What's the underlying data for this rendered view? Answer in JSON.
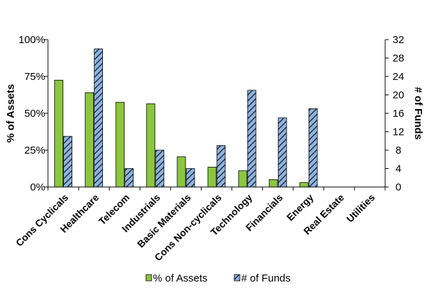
{
  "chart_data": {
    "type": "bar",
    "categories": [
      "Cons Cyclicals",
      "Healthcare",
      "Telecom",
      "Industrials",
      "Basic Materials",
      "Cons Non-cyclicals",
      "Technology",
      "Financials",
      "Energy",
      "Real Estate",
      "Utilities"
    ],
    "series": [
      {
        "name": "% of Assets",
        "axis": "left",
        "color": "#8cc63f",
        "values": [
          72.5,
          64,
          57.5,
          56.5,
          20.5,
          13.5,
          11,
          5,
          3,
          0,
          0
        ]
      },
      {
        "name": "# of Funds",
        "axis": "right",
        "color": "#8db4e2",
        "pattern": "diagonal-stripes",
        "values": [
          11,
          30,
          4,
          8,
          4,
          9,
          21,
          15,
          17,
          0,
          0
        ]
      }
    ],
    "ylabel": "% of Assets",
    "y2label": "# of Funds",
    "ylim": [
      0,
      100
    ],
    "y2lim": [
      0,
      32
    ],
    "yticks": [
      "0%",
      "25%",
      "50%",
      "75%",
      "100%"
    ],
    "y2ticks": [
      "0",
      "4",
      "8",
      "12",
      "16",
      "20",
      "24",
      "28",
      "32"
    ],
    "legend": "bottom",
    "grid": false
  }
}
